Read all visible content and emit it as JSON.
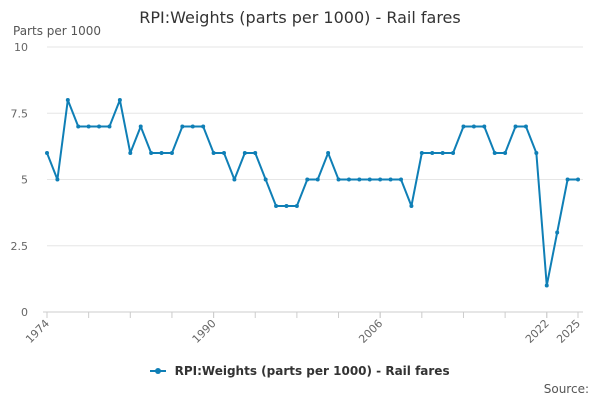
{
  "chart_data": {
    "type": "line",
    "title": "RPI:Weights (parts per 1000) - Rail fares",
    "ylabel": "Parts per 1000",
    "xlabel": "",
    "x_tick_labels": [
      "1974",
      "1990",
      "2006",
      "2022",
      "2025"
    ],
    "y_tick_labels": [
      "0",
      "2.5",
      "5",
      "7.5",
      "10"
    ],
    "ylim": [
      0,
      10
    ],
    "grid": true,
    "legend_position": "bottom",
    "source_label": "Source:",
    "series": [
      {
        "name": "RPI:Weights (parts per 1000) - Rail fares",
        "color": "#0f7fb6",
        "x": [
          1974,
          1975,
          1976,
          1977,
          1978,
          1979,
          1980,
          1981,
          1982,
          1983,
          1984,
          1985,
          1986,
          1987,
          1988,
          1989,
          1990,
          1991,
          1992,
          1993,
          1994,
          1995,
          1996,
          1997,
          1998,
          1999,
          2000,
          2001,
          2002,
          2003,
          2004,
          2005,
          2006,
          2007,
          2008,
          2009,
          2010,
          2011,
          2012,
          2013,
          2014,
          2015,
          2016,
          2017,
          2018,
          2019,
          2020,
          2021,
          2022,
          2023,
          2024,
          2025
        ],
        "values": [
          6,
          5,
          8,
          7,
          7,
          7,
          7,
          8,
          6,
          7,
          6,
          6,
          6,
          7,
          7,
          7,
          6,
          6,
          5,
          6,
          6,
          5,
          4,
          4,
          4,
          5,
          5,
          6,
          5,
          5,
          5,
          5,
          5,
          5,
          5,
          4,
          6,
          6,
          6,
          6,
          7,
          7,
          7,
          6,
          6,
          7,
          7,
          6,
          1,
          3,
          5,
          5
        ]
      }
    ]
  }
}
